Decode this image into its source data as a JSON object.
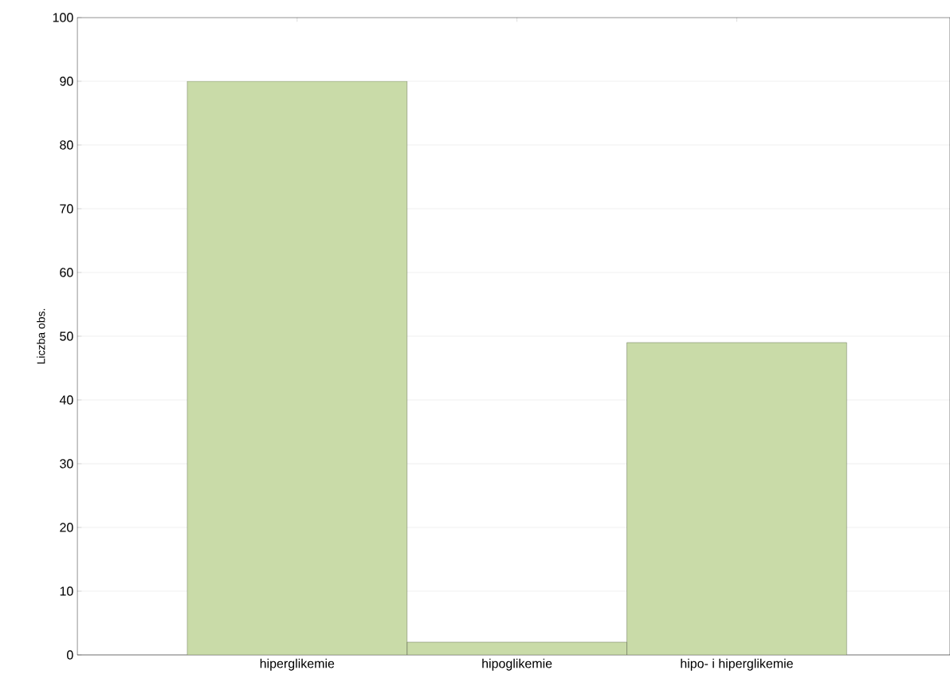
{
  "chart_data": {
    "type": "bar",
    "ylabel": "Liczba obs.",
    "categories": [
      "hiperglikemie",
      "hipoglikemie",
      "hipo- i hiperglikemie"
    ],
    "values": [
      90,
      2,
      49
    ],
    "color": "#c9dba8",
    "ylim": [
      0,
      100
    ],
    "yticks": [
      0,
      10,
      20,
      30,
      40,
      50,
      60,
      70,
      80,
      90,
      100
    ],
    "grid": "y"
  }
}
